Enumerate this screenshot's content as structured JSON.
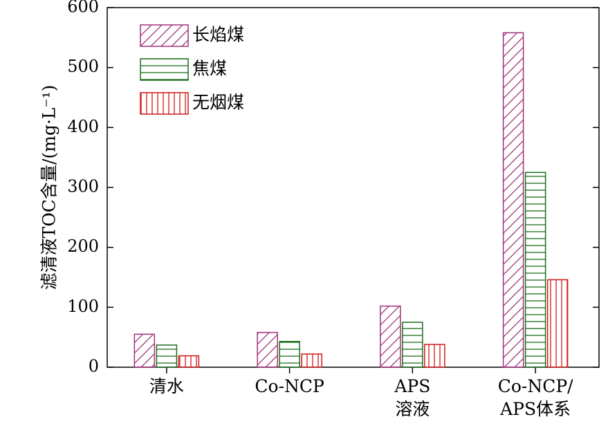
{
  "chart_data": {
    "type": "bar",
    "title": "",
    "xlabel": "",
    "ylabel": "滤清液TOC含量/(mg·L⁻¹)",
    "ylim": [
      0,
      600
    ],
    "yticks": [
      0,
      100,
      200,
      300,
      400,
      500,
      600
    ],
    "grid": false,
    "legend_position": "top-left",
    "categories": [
      [
        "清水"
      ],
      [
        "Co-NCP"
      ],
      [
        "APS",
        "溶液"
      ],
      [
        "Co-NCP/",
        "APS体系"
      ]
    ],
    "series": [
      {
        "name": "长焰煤",
        "values": [
          55,
          58,
          102,
          558
        ],
        "color": "#a0307a",
        "pattern": "diagonal"
      },
      {
        "name": "焦煤",
        "values": [
          37,
          43,
          75,
          325
        ],
        "color": "#1a6e1a",
        "pattern": "horizontal"
      },
      {
        "name": "无烟煤",
        "values": [
          19,
          22,
          38,
          146
        ],
        "color": "#d01818",
        "pattern": "vertical"
      }
    ]
  }
}
